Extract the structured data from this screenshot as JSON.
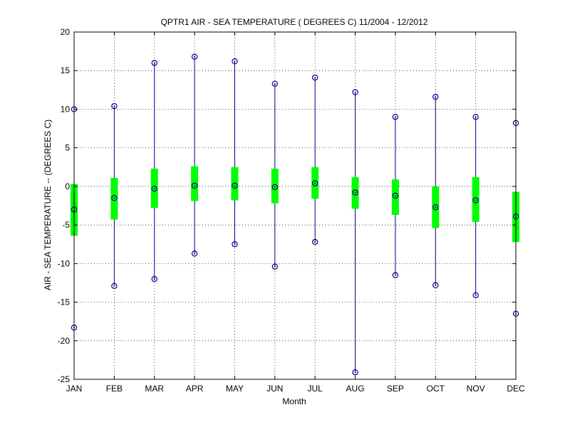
{
  "chart_data": {
    "type": "box",
    "title": "QPTR1  AIR - SEA TEMPERATURE ( DEGREES C) 11/2004 - 12/2012",
    "xlabel": "Month",
    "ylabel": "AIR - SEA TEMPERATURE -- (DEGREES C)",
    "ylim": [
      -25,
      20
    ],
    "yticks": [
      -25,
      -20,
      -15,
      -10,
      -5,
      0,
      5,
      10,
      15,
      20
    ],
    "grid": true,
    "categories": [
      "JAN",
      "FEB",
      "MAR",
      "APR",
      "MAY",
      "JUN",
      "JUL",
      "AUG",
      "SEP",
      "OCT",
      "NOV",
      "DEC"
    ],
    "series": [
      {
        "stat": "max",
        "values": [
          10.0,
          10.4,
          16.0,
          16.8,
          16.2,
          13.3,
          14.1,
          12.2,
          9.0,
          11.6,
          9.0,
          8.2
        ]
      },
      {
        "stat": "box_upper",
        "values": [
          0.3,
          1.1,
          2.3,
          2.6,
          2.5,
          2.3,
          2.5,
          1.2,
          0.9,
          0.0,
          1.2,
          -0.7
        ]
      },
      {
        "stat": "median",
        "values": [
          -3.0,
          -1.5,
          -0.3,
          0.1,
          0.1,
          -0.1,
          0.4,
          -0.8,
          -1.2,
          -2.7,
          -1.8,
          -3.9
        ]
      },
      {
        "stat": "box_lower",
        "values": [
          -6.4,
          -4.3,
          -2.8,
          -1.9,
          -1.8,
          -2.2,
          -1.6,
          -2.9,
          -3.7,
          -5.4,
          -4.6,
          -7.2
        ]
      },
      {
        "stat": "min",
        "values": [
          -18.3,
          -12.9,
          -12.0,
          -8.7,
          -7.5,
          -10.4,
          -7.2,
          -24.1,
          -11.5,
          -12.8,
          -14.1,
          -16.5
        ]
      }
    ],
    "colors": {
      "whisker": "#00008b",
      "marker": "#00008b",
      "box": "#00ff00",
      "grid": "#000000",
      "axis": "#000000"
    }
  }
}
